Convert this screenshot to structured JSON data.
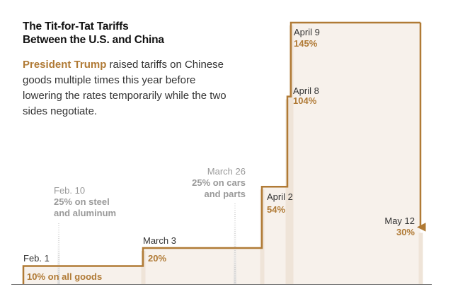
{
  "header": {
    "title_line1": "The Tit-for-Tat Tariffs",
    "title_line2": "Between the U.S. and China",
    "subtitle_highlight": "President Trump",
    "subtitle_rest": " raised tariffs on Chinese goods multiple times this year before lowering the rates temporarily while the two sides negotiate."
  },
  "colors": {
    "accent": "#b07a35",
    "fill": "#f7f1eb",
    "gray_text": "#9a9a9a",
    "dark_text": "#333333"
  },
  "chart_data": {
    "type": "line",
    "step": true,
    "x_type": "date",
    "x": [
      "Feb. 1",
      "March 3",
      "April 2",
      "April 8",
      "April 9",
      "May 12"
    ],
    "y": [
      10,
      20,
      54,
      104,
      145,
      30
    ],
    "units": "%",
    "annotations": [
      {
        "date": "Feb. 1",
        "label": "10% on all goods",
        "style": "accent"
      },
      {
        "date": "Feb. 10",
        "line1": "25% on steel",
        "line2": "and aluminum",
        "style": "gray"
      },
      {
        "date": "March 3",
        "label": "20%",
        "style": "accent"
      },
      {
        "date": "March 26",
        "line1": "25% on cars",
        "line2": "and parts",
        "style": "gray"
      },
      {
        "date": "April 2",
        "label": "54%",
        "style": "accent"
      },
      {
        "date": "April 8",
        "label": "104%",
        "style": "accent"
      },
      {
        "date": "April 9",
        "label": "145%",
        "style": "accent"
      },
      {
        "date": "May 12",
        "label": "30%",
        "style": "accent"
      }
    ]
  }
}
